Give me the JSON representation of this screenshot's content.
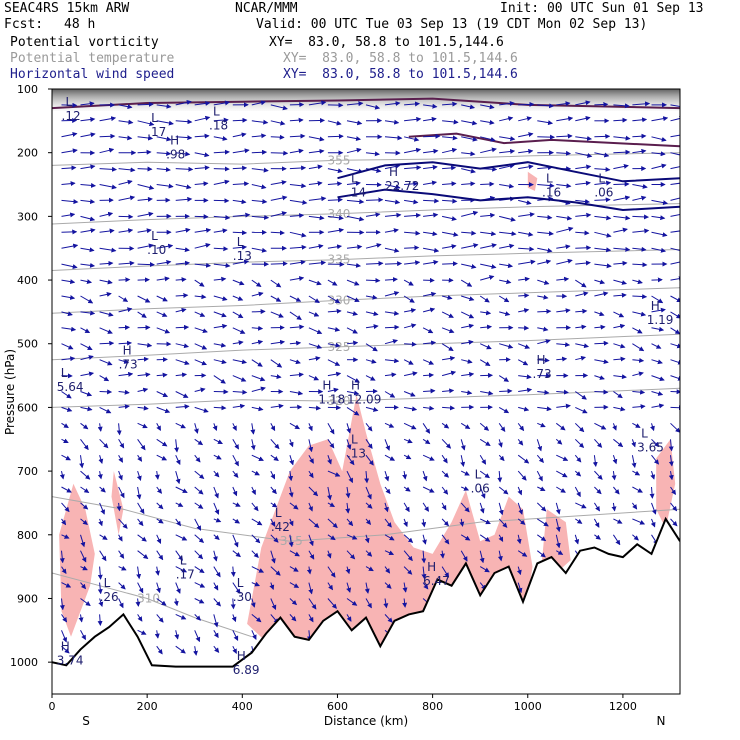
{
  "header": {
    "model": "SEAC4RS 15km ARW",
    "center": "NCAR/MMM",
    "init": "Init: 00 UTC Sun 01 Sep 13",
    "fcst_label": "Fcst:",
    "fcst_value": "48 h",
    "valid": "Valid: 00 UTC Tue 03 Sep 13 (19 CDT Mon 02 Sep 13)",
    "fields": [
      {
        "name": "Potential vorticity",
        "xy": "XY=  83.0, 58.8 to 101.5,144.6",
        "color": "#000000"
      },
      {
        "name": "Potential temperature",
        "xy": "XY=  83.0, 58.8 to 101.5,144.6",
        "color": "#9a9a9a"
      },
      {
        "name": "Horizontal wind speed",
        "xy": "XY=  83.0, 58.8 to 101.5,144.6",
        "color": "#1e1e8c"
      }
    ]
  },
  "chart_data": {
    "type": "cross-section",
    "xlabel": "Distance (km)",
    "ylabel": "Pressure (hPa)",
    "xlim": [
      0,
      1320
    ],
    "ylim": [
      1050,
      100
    ],
    "x_ticks": [
      0,
      200,
      400,
      600,
      800,
      1000,
      1200
    ],
    "x_tick_labels": [
      "0",
      "200",
      "400",
      "600",
      "800",
      "1000",
      "1200"
    ],
    "y_ticks": [
      100,
      200,
      300,
      400,
      500,
      600,
      700,
      800,
      900,
      1000
    ],
    "y_tick_labels": [
      "100",
      "200",
      "300",
      "400",
      "500",
      "600",
      "700",
      "800",
      "900",
      "1000"
    ],
    "x_end_labels": {
      "left": "S",
      "right": "N"
    },
    "terrain": {
      "x": [
        0,
        30,
        60,
        90,
        120,
        150,
        180,
        210,
        260,
        320,
        380,
        420,
        450,
        480,
        510,
        540,
        570,
        600,
        630,
        660,
        690,
        720,
        750,
        780,
        810,
        840,
        870,
        900,
        930,
        960,
        990,
        1020,
        1050,
        1080,
        1110,
        1140,
        1170,
        1200,
        1230,
        1260,
        1290,
        1320
      ],
      "p": [
        1000,
        1005,
        980,
        960,
        945,
        925,
        960,
        1005,
        1007,
        1007,
        1007,
        985,
        955,
        930,
        960,
        965,
        935,
        920,
        950,
        930,
        975,
        935,
        925,
        920,
        870,
        880,
        845,
        895,
        860,
        850,
        905,
        845,
        835,
        860,
        825,
        820,
        830,
        835,
        815,
        830,
        775,
        810
      ]
    },
    "theta_contours": [
      {
        "label": "355",
        "points": [
          [
            0,
            220
          ],
          [
            200,
            215
          ],
          [
            400,
            218
          ],
          [
            600,
            212
          ],
          [
            800,
            210
          ],
          [
            1000,
            205
          ],
          [
            1320,
            200
          ]
        ]
      },
      {
        "label": "340",
        "points": [
          [
            0,
            312
          ],
          [
            200,
            305
          ],
          [
            400,
            300
          ],
          [
            600,
            296
          ],
          [
            800,
            290
          ],
          [
            1000,
            285
          ],
          [
            1320,
            280
          ]
        ]
      },
      {
        "label": "335",
        "points": [
          [
            0,
            385
          ],
          [
            200,
            378
          ],
          [
            400,
            372
          ],
          [
            600,
            368
          ],
          [
            800,
            362
          ],
          [
            1000,
            358
          ],
          [
            1320,
            352
          ]
        ]
      },
      {
        "label": "330",
        "points": [
          [
            0,
            452
          ],
          [
            200,
            445
          ],
          [
            400,
            440
          ],
          [
            600,
            432
          ],
          [
            800,
            425
          ],
          [
            1000,
            420
          ],
          [
            1320,
            412
          ]
        ]
      },
      {
        "label": "325",
        "points": [
          [
            0,
            525
          ],
          [
            200,
            518
          ],
          [
            400,
            510
          ],
          [
            600,
            505
          ],
          [
            800,
            500
          ],
          [
            1000,
            495
          ],
          [
            1320,
            485
          ]
        ]
      },
      {
        "label": "320",
        "points": [
          [
            0,
            600
          ],
          [
            200,
            595
          ],
          [
            400,
            588
          ],
          [
            600,
            590
          ],
          [
            800,
            585
          ],
          [
            1000,
            580
          ],
          [
            1320,
            570
          ]
        ]
      },
      {
        "label": "315",
        "points": [
          [
            0,
            740
          ],
          [
            150,
            760
          ],
          [
            300,
            790
          ],
          [
            500,
            810
          ],
          [
            700,
            800
          ],
          [
            900,
            780
          ],
          [
            1320,
            760
          ]
        ]
      },
      {
        "label": "310",
        "points": [
          [
            0,
            860
          ],
          [
            100,
            880
          ],
          [
            200,
            900
          ],
          [
            300,
            930
          ],
          [
            420,
            960
          ]
        ]
      }
    ],
    "pv_shaded": [
      {
        "points": [
          [
            15,
            800
          ],
          [
            30,
            760
          ],
          [
            45,
            720
          ],
          [
            70,
            760
          ],
          [
            90,
            830
          ],
          [
            80,
            880
          ],
          [
            60,
            920
          ],
          [
            40,
            960
          ],
          [
            20,
            920
          ]
        ]
      },
      {
        "points": [
          [
            130,
            700
          ],
          [
            150,
            760
          ],
          [
            140,
            800
          ],
          [
            125,
            740
          ]
        ]
      },
      {
        "points": [
          [
            410,
            940
          ],
          [
            440,
            820
          ],
          [
            470,
            760
          ],
          [
            500,
            700
          ],
          [
            540,
            660
          ],
          [
            580,
            650
          ],
          [
            610,
            700
          ],
          [
            640,
            580
          ],
          [
            660,
            640
          ],
          [
            690,
            720
          ],
          [
            720,
            780
          ],
          [
            760,
            820
          ],
          [
            800,
            830
          ],
          [
            840,
            780
          ],
          [
            870,
            730
          ],
          [
            900,
            810
          ],
          [
            930,
            800
          ],
          [
            960,
            740
          ],
          [
            990,
            760
          ],
          [
            1010,
            850
          ],
          [
            1000,
            900
          ],
          [
            960,
            930
          ],
          [
            920,
            950
          ],
          [
            870,
            960
          ],
          [
            820,
            960
          ],
          [
            760,
            970
          ],
          [
            700,
            975
          ],
          [
            640,
            980
          ],
          [
            580,
            965
          ],
          [
            520,
            975
          ],
          [
            460,
            975
          ]
        ]
      },
      {
        "points": [
          [
            1040,
            760
          ],
          [
            1080,
            780
          ],
          [
            1090,
            840
          ],
          [
            1060,
            860
          ],
          [
            1030,
            840
          ]
        ]
      },
      {
        "points": [
          [
            1270,
            680
          ],
          [
            1300,
            650
          ],
          [
            1310,
            720
          ],
          [
            1290,
            790
          ],
          [
            1270,
            760
          ]
        ]
      },
      {
        "points": [
          [
            1000,
            230
          ],
          [
            1020,
            240
          ],
          [
            1015,
            260
          ],
          [
            1000,
            255
          ]
        ]
      }
    ],
    "pv_lines": [
      {
        "points": [
          [
            0,
            130
          ],
          [
            200,
            122
          ],
          [
            400,
            120
          ],
          [
            600,
            118
          ],
          [
            800,
            115
          ],
          [
            1000,
            125
          ],
          [
            1320,
            130
          ]
        ]
      },
      {
        "points": [
          [
            750,
            175
          ],
          [
            850,
            170
          ],
          [
            950,
            185
          ],
          [
            1050,
            180
          ],
          [
            1320,
            190
          ]
        ]
      }
    ],
    "hl_labels": [
      {
        "x": 20,
        "p": 130,
        "letter": "L",
        "value": ".12"
      },
      {
        "x": 240,
        "p": 190,
        "letter": "H",
        "value": ".98"
      },
      {
        "x": 200,
        "p": 155,
        "letter": "L",
        "value": ".17"
      },
      {
        "x": 330,
        "p": 145,
        "letter": "L",
        "value": ".18"
      },
      {
        "x": 700,
        "p": 240,
        "letter": "H",
        "value": "22.72"
      },
      {
        "x": 620,
        "p": 250,
        "letter": "L",
        "value": ".14"
      },
      {
        "x": 1030,
        "p": 250,
        "letter": "L",
        "value": ".16"
      },
      {
        "x": 1140,
        "p": 250,
        "letter": "L",
        "value": ".06"
      },
      {
        "x": 200,
        "p": 340,
        "letter": "L",
        "value": ".10"
      },
      {
        "x": 380,
        "p": 350,
        "letter": "L",
        "value": ".13"
      },
      {
        "x": 1250,
        "p": 450,
        "letter": "H",
        "value": "1.19"
      },
      {
        "x": 140,
        "p": 520,
        "letter": "H",
        "value": ".73"
      },
      {
        "x": 10,
        "p": 555,
        "letter": "L",
        "value": "5.64"
      },
      {
        "x": 560,
        "p": 575,
        "letter": "H",
        "value": "1.18"
      },
      {
        "x": 620,
        "p": 575,
        "letter": "H",
        "value": "12.09"
      },
      {
        "x": 1010,
        "p": 535,
        "letter": "H",
        "value": ".73"
      },
      {
        "x": 620,
        "p": 660,
        "letter": "L",
        "value": ".13"
      },
      {
        "x": 1230,
        "p": 650,
        "letter": "L",
        "value": "3.65"
      },
      {
        "x": 880,
        "p": 715,
        "letter": "L",
        "value": ".06"
      },
      {
        "x": 460,
        "p": 775,
        "letter": "L",
        "value": ".42"
      },
      {
        "x": 260,
        "p": 850,
        "letter": "L",
        "value": ".17"
      },
      {
        "x": 100,
        "p": 885,
        "letter": "L",
        "value": ".26"
      },
      {
        "x": 380,
        "p": 885,
        "letter": "L",
        "value": ".30"
      },
      {
        "x": 780,
        "p": 860,
        "letter": "H",
        "value": "6.47"
      },
      {
        "x": 10,
        "p": 985,
        "letter": "H",
        "value": "3.74"
      },
      {
        "x": 380,
        "p": 1000,
        "letter": "H",
        "value": "6.89"
      }
    ],
    "colors": {
      "pv_shade": "#f8b4b4",
      "pv_line": "#5a1e4e",
      "theta": "#aaaaaa",
      "wind": "#1414a0",
      "terrain": "#000000",
      "wind_contour": "#0a0a78"
    }
  }
}
